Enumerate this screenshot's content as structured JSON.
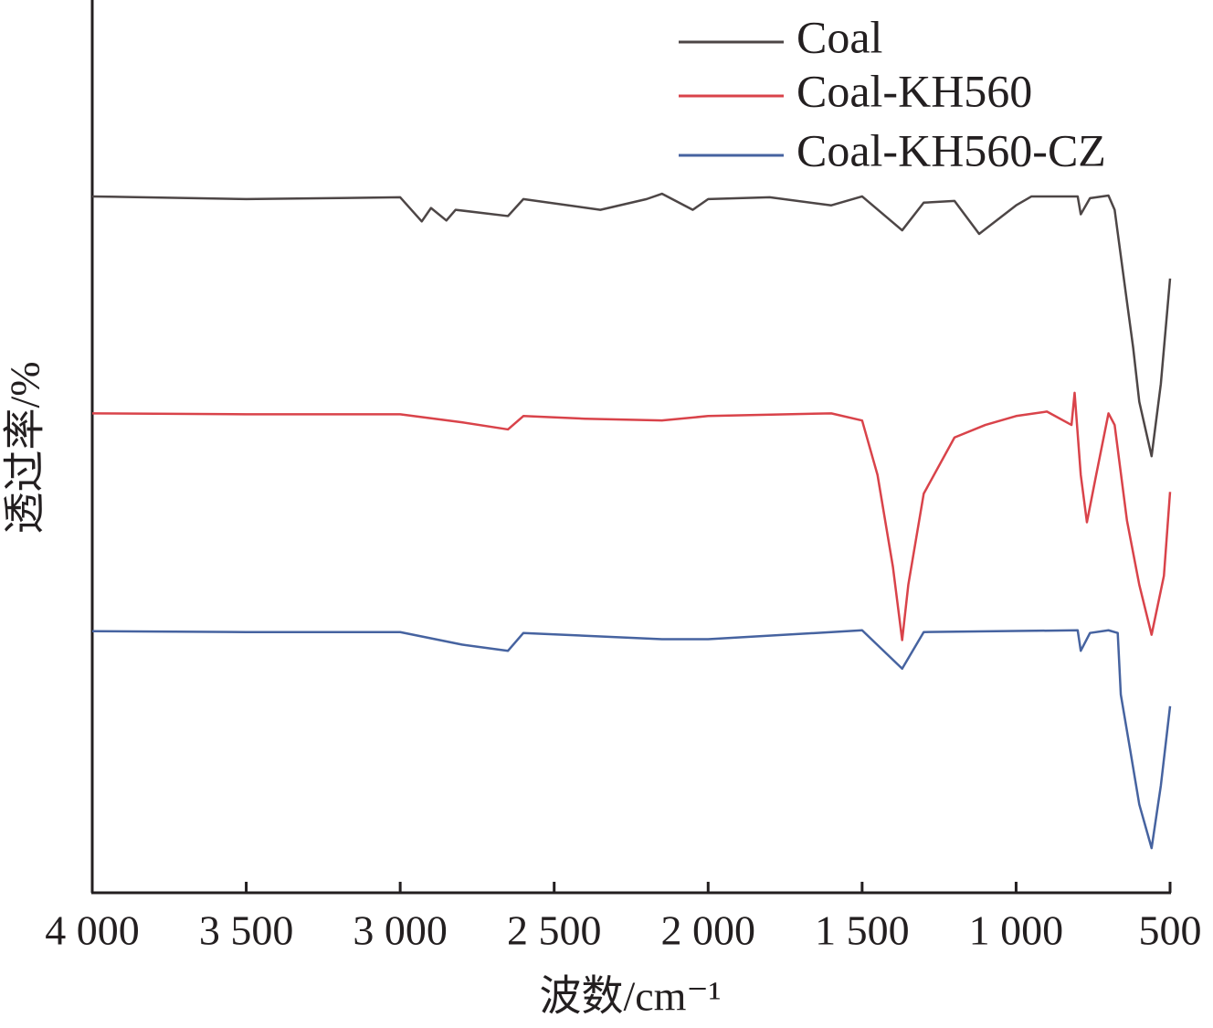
{
  "chart_data": {
    "type": "line",
    "xlabel": "波数/cm⁻¹",
    "ylabel": "透过率/%",
    "xlim": [
      4000,
      500
    ],
    "ylim": [
      0,
      100
    ],
    "xticks": [
      {
        "value": 4000,
        "label": "4 000"
      },
      {
        "value": 3500,
        "label": "3 500"
      },
      {
        "value": 3000,
        "label": "3 000"
      },
      {
        "value": 2500,
        "label": "2 500"
      },
      {
        "value": 2000,
        "label": "2 000"
      },
      {
        "value": 1500,
        "label": "1 500"
      },
      {
        "value": 1000,
        "label": "1 000"
      },
      500
    ],
    "legend": "upper right",
    "series": [
      {
        "name": "Coal",
        "color": "#4d4646",
        "x": [
          4000,
          3500,
          3000,
          2930,
          2900,
          2850,
          2820,
          2650,
          2600,
          2350,
          2200,
          2150,
          2050,
          2000,
          1800,
          1600,
          1500,
          1370,
          1300,
          1200,
          1120,
          1000,
          950,
          800,
          790,
          760,
          700,
          680,
          640,
          620,
          600,
          560,
          530,
          500
        ],
        "values": [
          78.0,
          77.7,
          77.9,
          75.2,
          76.7,
          75.3,
          76.5,
          75.8,
          77.7,
          76.5,
          77.7,
          78.3,
          76.5,
          77.7,
          77.9,
          77.0,
          78.0,
          74.2,
          77.3,
          77.5,
          73.8,
          77.0,
          78.0,
          78.0,
          76.0,
          77.8,
          78.1,
          76.5,
          66.2,
          61.1,
          55.0,
          48.9,
          57.0,
          68.8
        ]
      },
      {
        "name": "Coal-KH560",
        "color": "#d9434a",
        "x": [
          4000,
          3500,
          3000,
          2800,
          2650,
          2600,
          2400,
          2150,
          2000,
          1600,
          1500,
          1450,
          1400,
          1370,
          1350,
          1300,
          1200,
          1100,
          1000,
          900,
          820,
          810,
          790,
          770,
          740,
          700,
          680,
          640,
          600,
          560,
          520,
          500
        ],
        "values": [
          53.7,
          53.6,
          53.6,
          52.7,
          51.9,
          53.4,
          53.1,
          52.9,
          53.4,
          53.7,
          52.9,
          46.8,
          36.5,
          28.3,
          34.5,
          44.7,
          51.0,
          52.4,
          53.4,
          53.9,
          52.4,
          56.0,
          46.8,
          41.5,
          46.8,
          53.7,
          52.4,
          41.7,
          34.5,
          28.9,
          35.5,
          44.9
        ]
      },
      {
        "name": "Coal-KH560-CZ",
        "color": "#4663a0",
        "x": [
          4000,
          3500,
          3000,
          2800,
          2650,
          2600,
          2150,
          2000,
          1600,
          1500,
          1370,
          1300,
          800,
          790,
          760,
          700,
          670,
          660,
          630,
          600,
          560,
          530,
          500
        ],
        "values": [
          29.3,
          29.2,
          29.2,
          27.8,
          27.1,
          29.1,
          28.4,
          28.4,
          29.2,
          29.4,
          25.1,
          29.2,
          29.4,
          27.1,
          29.1,
          29.4,
          29.1,
          22.2,
          16.1,
          9.9,
          5.0,
          12.0,
          20.9
        ]
      }
    ]
  }
}
